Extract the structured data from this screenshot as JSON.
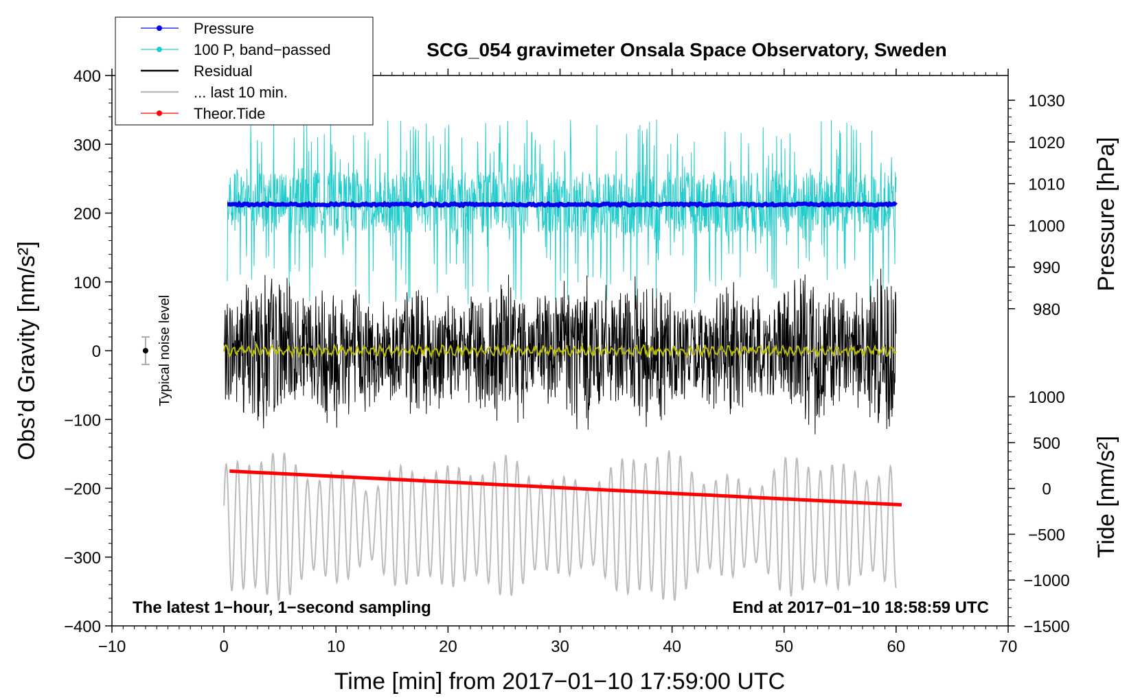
{
  "chart_data": {
    "type": "line",
    "title": "SCG_054 gravimeter Onsala Space Observatory, Sweden",
    "xlabel": "Time [min] from 2017−01−10 17:59:00 UTC",
    "ylabel_left": "Obs’d Gravity [nm/s²]",
    "ylabel_right_top": "Pressure [hPa]",
    "ylabel_right_bottom": "Tide [nm/s²]",
    "xlim": [
      -10,
      70
    ],
    "ylim_left": [
      -400,
      400
    ],
    "x_ticks": [
      "−10",
      "0",
      "10",
      "20",
      "30",
      "40",
      "50",
      "60",
      "70"
    ],
    "y_left_ticks": [
      "400",
      "300",
      "200",
      "100",
      "0",
      "−100",
      "−200",
      "−300",
      "−400"
    ],
    "pressure_ticks": [
      "1030",
      "1020",
      "1010",
      "1000",
      "990",
      "980"
    ],
    "pressure_tick_values": [
      1030,
      1020,
      1010,
      1000,
      990,
      980
    ],
    "pressure_left_equiv": [
      [
        1030,
        364
      ],
      [
        980,
        61
      ]
    ],
    "tide_ticks": [
      "1000",
      "500",
      "0",
      "−500",
      "−1000",
      "−1500"
    ],
    "tide_tick_values": [
      1000,
      500,
      0,
      -500,
      -1000,
      -1500
    ],
    "tide_left_equiv": [
      [
        1000,
        -67
      ],
      [
        -1500,
        -400
      ]
    ],
    "legend": [
      {
        "label": "Pressure",
        "color": "#0000ee",
        "marker": true
      },
      {
        "label": "100 P, band−passed",
        "color": "#22cccc",
        "marker": true
      },
      {
        "label": "Residual",
        "color": "#000000",
        "marker": false
      },
      {
        "label": "... last 10 min.",
        "color": "#bbbbbb",
        "marker": false
      },
      {
        "label": "Theor.Tide",
        "color": "#ff0000",
        "marker": true
      }
    ],
    "annotations": {
      "left": "The latest 1−hour, 1−second sampling",
      "right": "End at 2017−01−10 18:58:59 UTC",
      "noise": "Typical noise level"
    },
    "noise_bar": {
      "x": -7,
      "center": 0,
      "half_range": 20
    },
    "series": [
      {
        "name": "Pressure",
        "color": "#0000ee",
        "x_range": [
          0.3,
          60
        ],
        "level_hpa": 1005
      },
      {
        "name": "100 P, band−passed",
        "color": "#22cccc",
        "x_range": [
          0.3,
          60
        ],
        "center": 215,
        "amplitude": 90
      },
      {
        "name": "Residual",
        "color": "#000000",
        "x_range": [
          0,
          60
        ],
        "center": 0,
        "amplitude": 130
      },
      {
        "name": "Residual smoothed",
        "color": "#bbbb00",
        "x_range": [
          0,
          60
        ],
        "center": 0,
        "amplitude": 8
      },
      {
        "name": "... last 10 min.",
        "color": "#bbbbbb",
        "x_range": [
          0,
          60
        ],
        "center": -255,
        "amplitude": 105
      },
      {
        "name": "Theor.Tide",
        "color": "#ff0000",
        "x": [
          0.5,
          60.5
        ],
        "y": [
          -175,
          -224
        ]
      }
    ]
  }
}
